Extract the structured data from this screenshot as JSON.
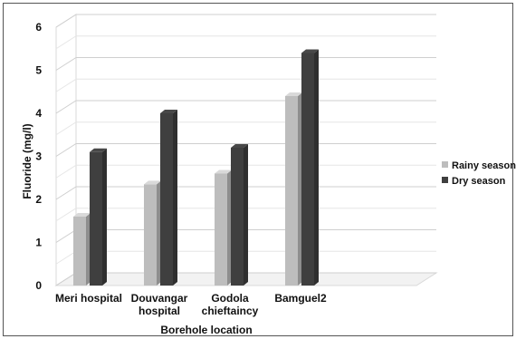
{
  "chart_data": {
    "type": "bar",
    "style": "3d-clustered-column",
    "xlabel": "Borehole location",
    "ylabel": "Fluoride (mg/l)",
    "ylim": [
      0,
      6
    ],
    "yticks": [
      0,
      1,
      2,
      3,
      4,
      5,
      6
    ],
    "categories": [
      [
        "Meri hospital"
      ],
      [
        "Douvangar",
        "hospital"
      ],
      [
        "Godola",
        "chieftaincy"
      ],
      [
        "Bamguel2"
      ]
    ],
    "series": [
      {
        "name": "Rainy season",
        "color": "#bdbdbd",
        "values": [
          1.6,
          2.35,
          2.6,
          4.4
        ]
      },
      {
        "name": "Dry season",
        "color": "#3f3f3f",
        "values": [
          3.1,
          4.0,
          3.2,
          5.4
        ]
      }
    ],
    "grid": true,
    "legend_position": "right"
  }
}
